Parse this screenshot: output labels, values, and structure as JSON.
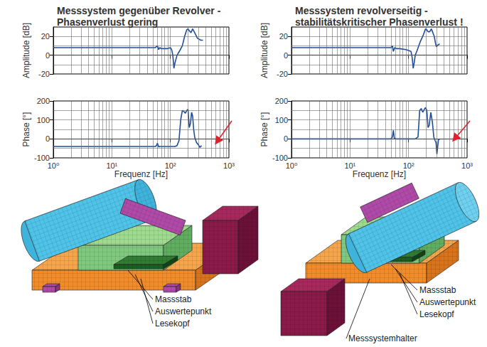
{
  "chart_data": [
    {
      "type": "line",
      "title": "Messsystem gegenüber Revolver -\nPhasenverlust gering",
      "y_label": "Amplitude [dB]",
      "log": "x",
      "grid": true,
      "tick_labels": "y",
      "color": "#1f4e9c",
      "xlim": [
        1,
        1000
      ],
      "xticks": [
        {
          "value": 1,
          "label": "10⁰"
        },
        {
          "value": 10,
          "label": "10¹"
        },
        {
          "value": 100,
          "label": "10²"
        },
        {
          "value": 1000,
          "label": "10³"
        }
      ],
      "ylim": [
        -20,
        30
      ],
      "yticks": [
        -20,
        0,
        20
      ],
      "x": [
        1,
        2,
        5,
        10,
        20,
        40,
        55,
        60,
        63,
        66,
        70,
        80,
        90,
        100,
        105,
        110,
        115,
        120,
        130,
        145,
        160,
        175,
        190,
        200,
        210,
        225,
        240,
        255,
        270,
        290,
        310,
        330,
        360
      ],
      "values": [
        8,
        8,
        8,
        8,
        8,
        8,
        8,
        10,
        6,
        8,
        7,
        7,
        7,
        8,
        6,
        0,
        -14,
        -8,
        0,
        5,
        10,
        20,
        27,
        28,
        26,
        24,
        28,
        25,
        22,
        18,
        17,
        16,
        16
      ]
    },
    {
      "type": "line",
      "x_label": "Frequenz [Hz]",
      "y_label": "Phase [°]",
      "log": "x",
      "grid": true,
      "tick_labels": true,
      "color": "#1f4e9c",
      "xlim": [
        1,
        1000
      ],
      "xticks": [
        {
          "value": 1,
          "label": "10⁰"
        },
        {
          "value": 10,
          "label": "10¹"
        },
        {
          "value": 100,
          "label": "10²"
        },
        {
          "value": 1000,
          "label": "10³"
        }
      ],
      "ylim": [
        -100,
        200
      ],
      "yticks": [
        -100,
        0,
        100,
        200
      ],
      "x": [
        1,
        10,
        40,
        55,
        58,
        60,
        63,
        66,
        80,
        100,
        120,
        130,
        140,
        150,
        160,
        170,
        180,
        190,
        200,
        210,
        220,
        230,
        240,
        250,
        260,
        280,
        300,
        320,
        340
      ],
      "values": [
        -40,
        -40,
        -40,
        -40,
        -35,
        -22,
        -42,
        -40,
        -40,
        -40,
        -40,
        -35,
        -10,
        100,
        150,
        145,
        135,
        150,
        155,
        60,
        80,
        140,
        120,
        50,
        10,
        -20,
        -30,
        -45,
        -35
      ]
    },
    {
      "type": "line",
      "title": "Messsystem revolverseitig -\nstabilitätskritischer Phasenverlust !",
      "y_label": "Amplitude [dB]",
      "log": "x",
      "grid": true,
      "tick_labels": "y",
      "color": "#1f4e9c",
      "xlim": [
        1,
        1000
      ],
      "xticks": [
        {
          "value": 1,
          "label": "10⁰"
        },
        {
          "value": 10,
          "label": "10¹"
        },
        {
          "value": 100,
          "label": "10²"
        },
        {
          "value": 1000,
          "label": "10³"
        }
      ],
      "ylim": [
        -20,
        30
      ],
      "yticks": [
        -20,
        0,
        20
      ],
      "x": [
        1,
        10,
        40,
        50,
        53,
        55,
        58,
        62,
        70,
        90,
        110,
        115,
        120,
        125,
        130,
        140,
        160,
        180,
        195,
        205,
        215,
        230,
        245,
        260,
        275,
        290,
        300,
        320,
        340
      ],
      "values": [
        8,
        8,
        8,
        8,
        10,
        4,
        8,
        7,
        7,
        6,
        4,
        -2,
        -14,
        -8,
        0,
        5,
        15,
        22,
        28,
        27,
        25,
        25,
        28,
        24,
        20,
        12,
        9,
        11,
        12
      ]
    },
    {
      "type": "line",
      "x_label": "Frequenz [Hz]",
      "y_label": "Phase [°]",
      "log": "x",
      "grid": true,
      "tick_labels": true,
      "color": "#1f4e9c",
      "xlim": [
        1,
        1000
      ],
      "xticks": [
        {
          "value": 1,
          "label": "10⁰"
        },
        {
          "value": 10,
          "label": "10¹"
        },
        {
          "value": 100,
          "label": "10²"
        },
        {
          "value": 1000,
          "label": "10³"
        }
      ],
      "ylim": [
        -100,
        200
      ],
      "yticks": [
        -100,
        0,
        100,
        200
      ],
      "x": [
        1,
        10,
        40,
        50,
        53,
        55,
        57,
        60,
        70,
        100,
        130,
        145,
        155,
        165,
        175,
        185,
        195,
        205,
        215,
        225,
        240,
        255,
        270,
        285,
        295,
        305,
        315,
        325,
        340
      ],
      "values": [
        0,
        0,
        0,
        0,
        10,
        45,
        5,
        0,
        0,
        0,
        0,
        10,
        150,
        160,
        140,
        155,
        165,
        150,
        60,
        70,
        140,
        90,
        10,
        -10,
        -20,
        -80,
        -40,
        0,
        -5
      ]
    }
  ],
  "models": [
    {
      "labels": [
        "Massstab",
        "Auswertepunkt",
        "Lesekopf"
      ]
    },
    {
      "labels": [
        "Massstab",
        "Auswertepunkt",
        "Lesekopf",
        "Messsystemhalter"
      ]
    }
  ]
}
